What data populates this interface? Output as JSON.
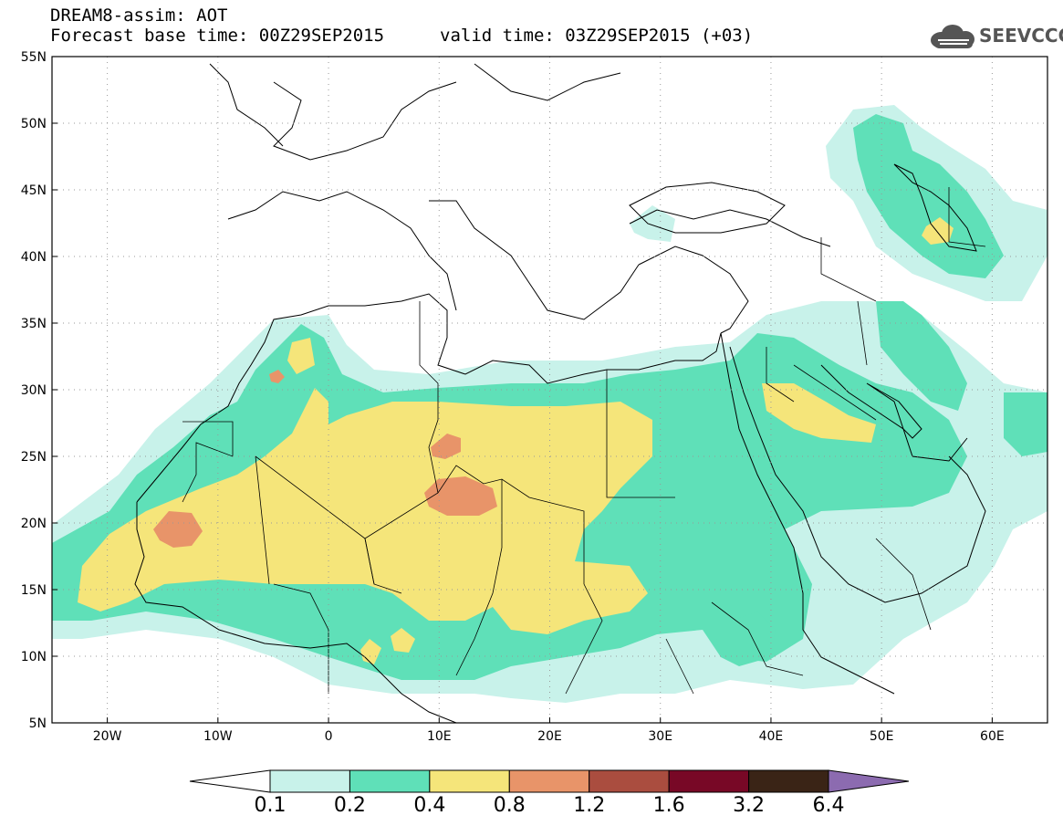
{
  "header": {
    "line1": "DREAM8-assim: AOT",
    "line2": "Forecast base time: 00Z29SEP2015",
    "valid": "valid time: 03Z29SEP2015 (+03)",
    "logo_text": "SEEVCCC",
    "logo_icon": "cloud-logo-icon"
  },
  "map": {
    "lon_range": [
      -25,
      65
    ],
    "lat_range": [
      5,
      55
    ],
    "lon_ticks": [
      {
        "value": -20,
        "label": "20W"
      },
      {
        "value": -10,
        "label": "10W"
      },
      {
        "value": 0,
        "label": "0"
      },
      {
        "value": 10,
        "label": "10E"
      },
      {
        "value": 20,
        "label": "20E"
      },
      {
        "value": 30,
        "label": "30E"
      },
      {
        "value": 40,
        "label": "40E"
      },
      {
        "value": 50,
        "label": "50E"
      },
      {
        "value": 60,
        "label": "60E"
      }
    ],
    "lat_ticks": [
      {
        "value": 55,
        "label": "55N"
      },
      {
        "value": 50,
        "label": "50N"
      },
      {
        "value": 45,
        "label": "45N"
      },
      {
        "value": 40,
        "label": "40N"
      },
      {
        "value": 35,
        "label": "35N"
      },
      {
        "value": 30,
        "label": "30N"
      },
      {
        "value": 25,
        "label": "25N"
      },
      {
        "value": 20,
        "label": "20N"
      },
      {
        "value": 15,
        "label": "15N"
      },
      {
        "value": 10,
        "label": "10N"
      },
      {
        "value": 5,
        "label": "5N"
      }
    ],
    "grid": "dotted"
  },
  "legend": {
    "labels": [
      "0.1",
      "0.2",
      "0.4",
      "0.8",
      "1.2",
      "1.6",
      "3.2",
      "6.4"
    ],
    "colors": [
      "#c8f2ea",
      "#5fe0b8",
      "#f5e57a",
      "#e89469",
      "#aa4d3f",
      "#780826",
      "#3a2416",
      "#8c6bb0"
    ]
  }
}
